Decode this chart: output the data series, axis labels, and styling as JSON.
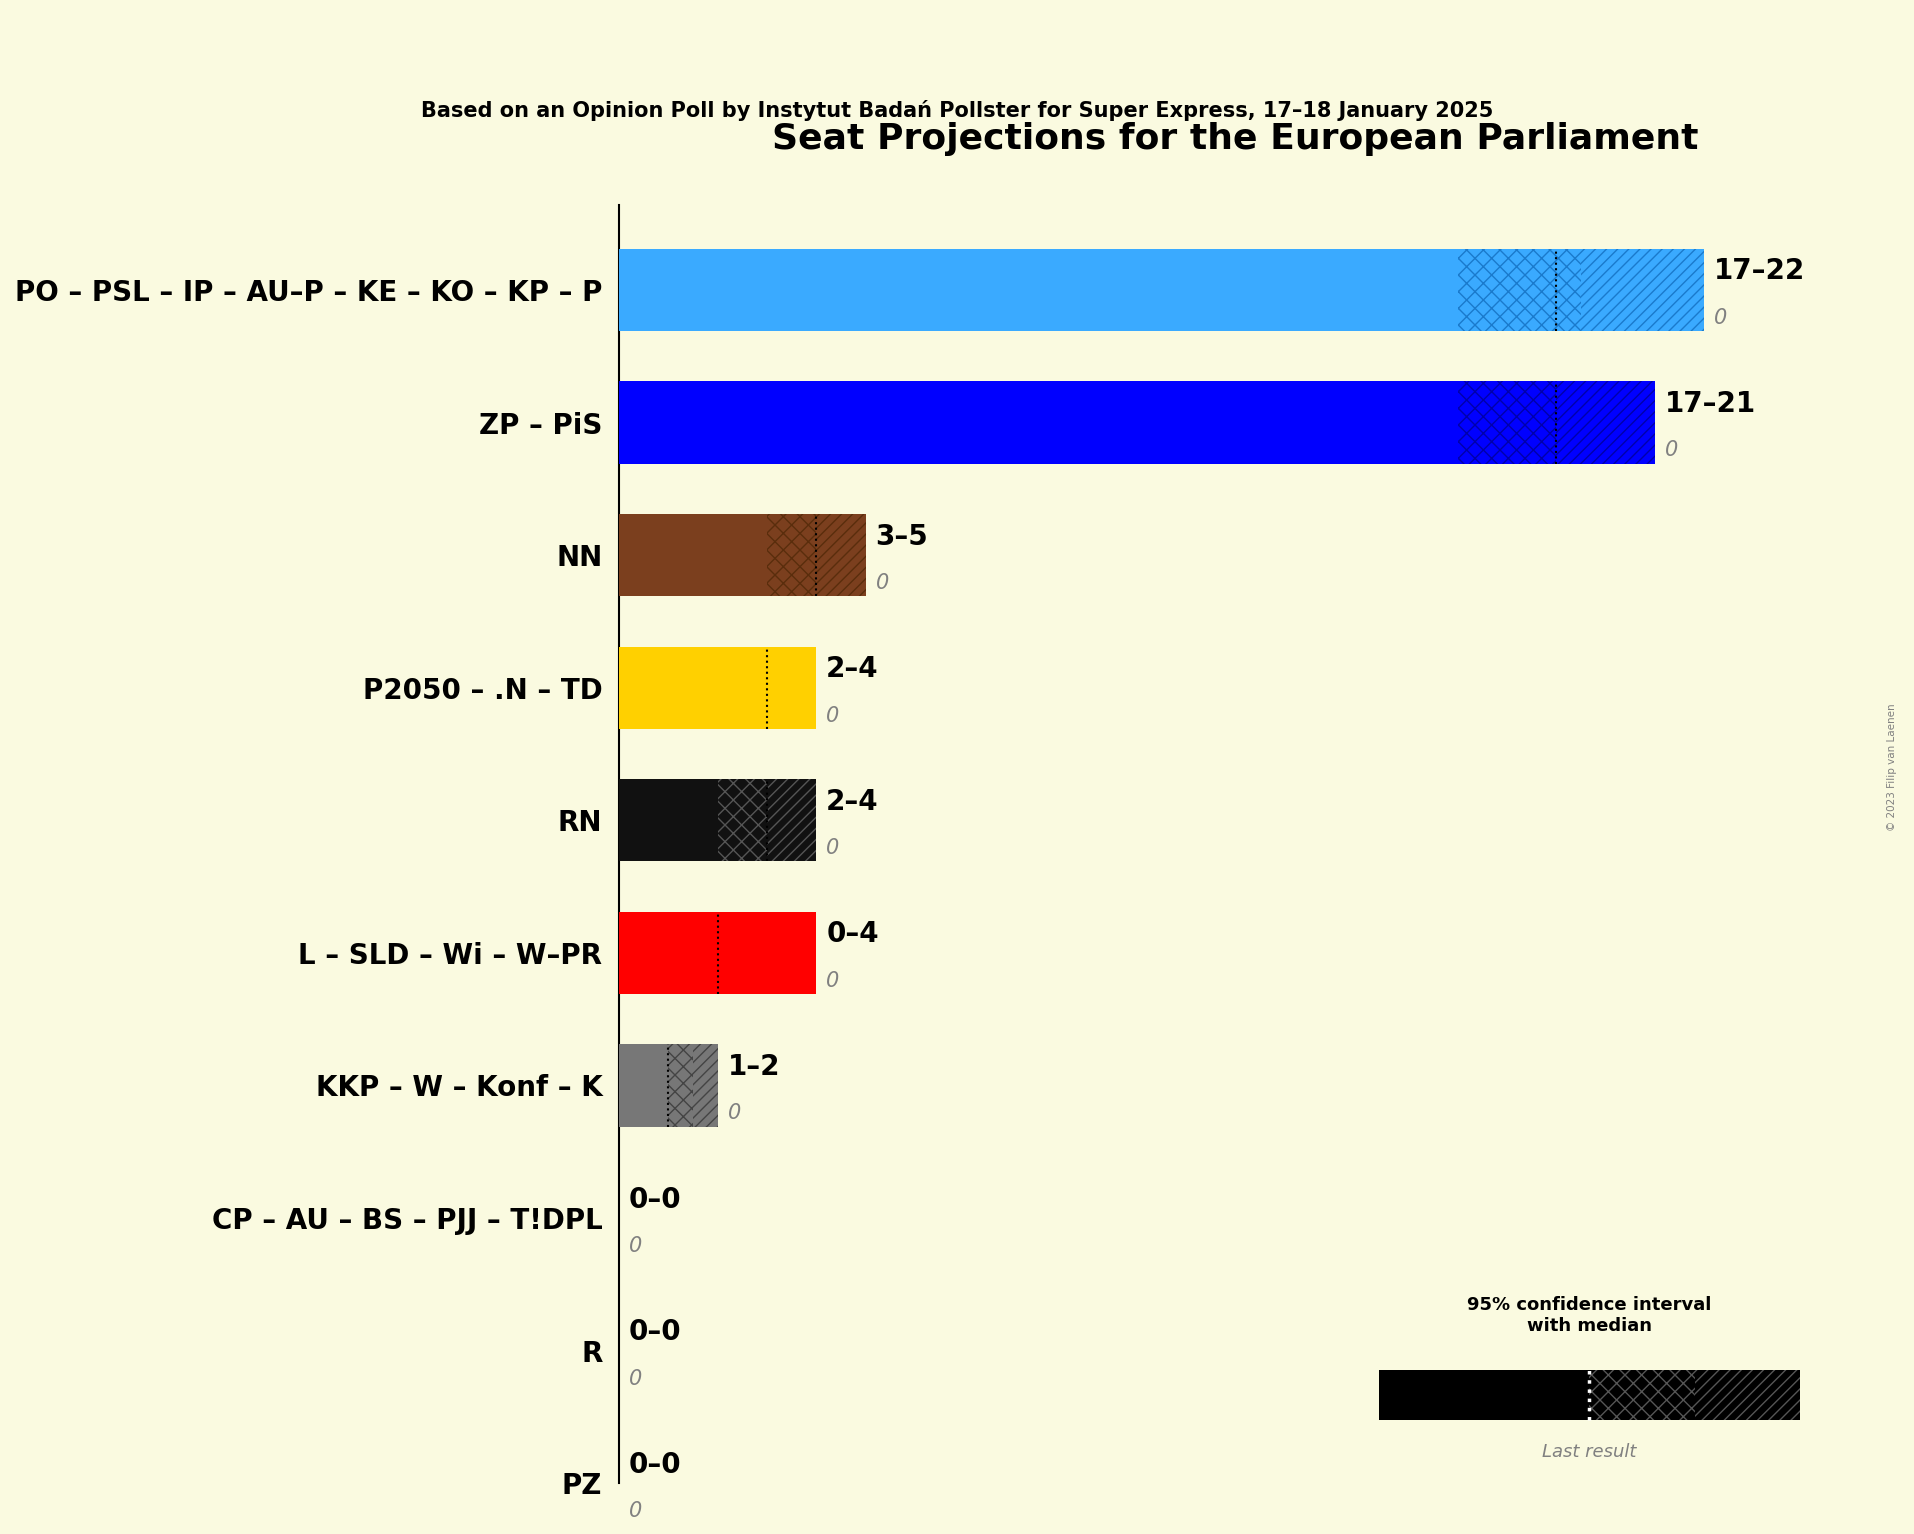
{
  "title": "Seat Projections for the European Parliament",
  "subtitle": "Based on an Opinion Poll by Instytut Badań Pollster for Super Express, 17–18 January 2025",
  "copyright": "© 2023 Filip van Laenen",
  "background_color": "#FAFAE0",
  "parties": [
    {
      "name": "PO – PSL – IP – AU–P – KE – KO – KP – P",
      "low": 17,
      "median": 19,
      "high": 22,
      "last": 0,
      "color": "#3AAAFF",
      "hatch_color": "#1A7ACC"
    },
    {
      "name": "ZP – PiS",
      "low": 17,
      "median": 19,
      "high": 21,
      "last": 0,
      "color": "#0000FF",
      "hatch_color": "#0000AA"
    },
    {
      "name": "NN",
      "low": 3,
      "median": 4,
      "high": 5,
      "last": 0,
      "color": "#7B3F1E",
      "hatch_color": "#5A2D0C"
    },
    {
      "name": "P2050 – .N – TD",
      "low": 2,
      "median": 3,
      "high": 4,
      "last": 0,
      "color": "#FFD000",
      "hatch_color": "#FFD000"
    },
    {
      "name": "RN",
      "low": 2,
      "median": 3,
      "high": 4,
      "last": 0,
      "color": "#111111",
      "hatch_color": "#555555"
    },
    {
      "name": "L – SLD – Wi – W–PR",
      "low": 0,
      "median": 2,
      "high": 4,
      "last": 0,
      "color": "#FF0000",
      "hatch_color": "#FF0000"
    },
    {
      "name": "KKP – W – Konf – K",
      "low": 1,
      "median": 1,
      "high": 2,
      "last": 0,
      "color": "#777777",
      "hatch_color": "#444444"
    },
    {
      "name": "CP – AU – BS – PJJ – T!DPL",
      "low": 0,
      "median": 0,
      "high": 0,
      "last": 0,
      "color": "#AAAAAA",
      "hatch_color": "#777777"
    },
    {
      "name": "R",
      "low": 0,
      "median": 0,
      "high": 0,
      "last": 0,
      "color": "#AAAAAA",
      "hatch_color": "#777777"
    },
    {
      "name": "PZ",
      "low": 0,
      "median": 0,
      "high": 0,
      "last": 0,
      "color": "#AAAAAA",
      "hatch_color": "#777777"
    }
  ],
  "xlim": [
    0,
    25
  ],
  "label_fontsize": 20,
  "title_fontsize": 26,
  "subtitle_fontsize": 15,
  "bar_height": 0.62
}
